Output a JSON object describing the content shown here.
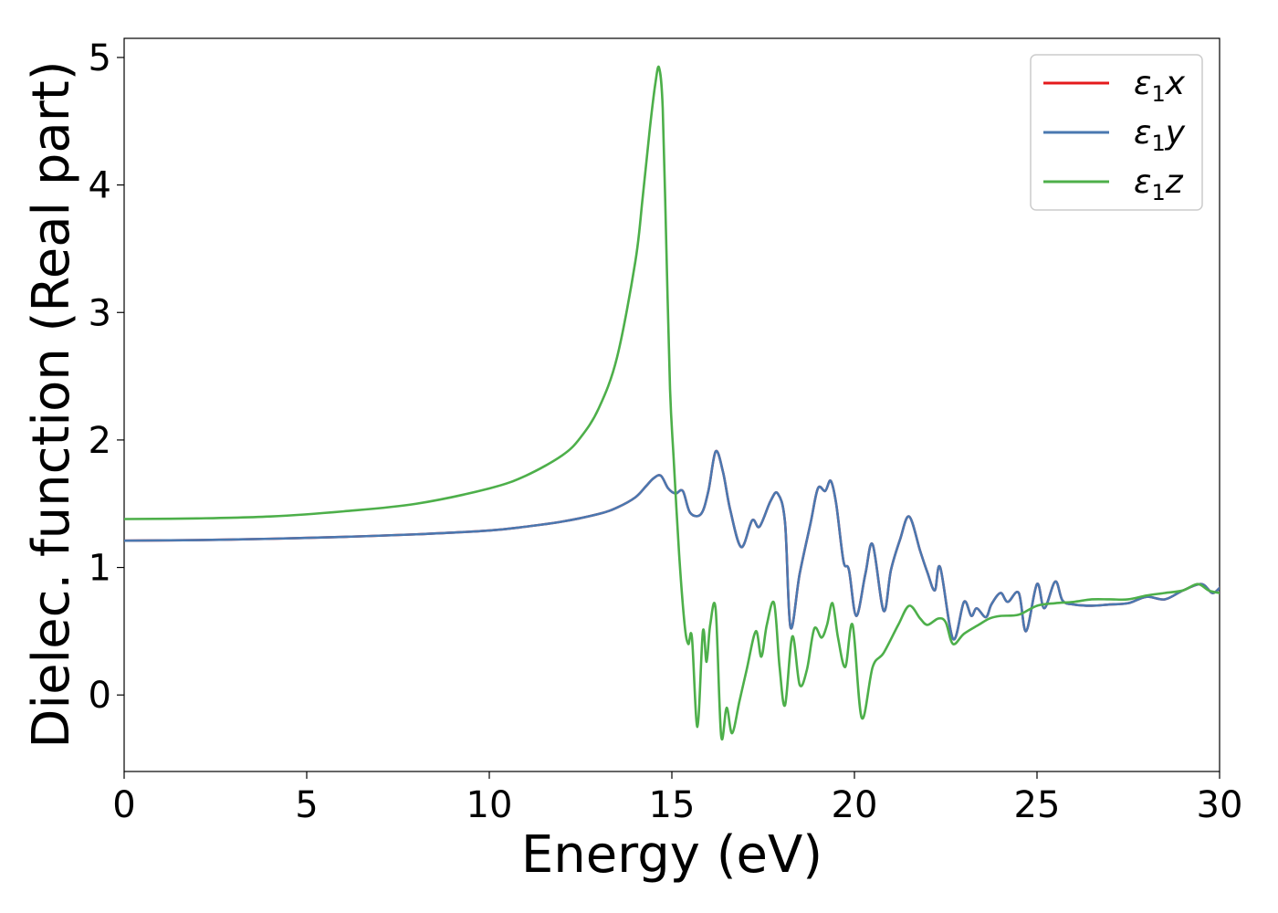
{
  "chart_data": {
    "type": "line",
    "title": "",
    "xlabel": "Energy (eV)",
    "ylabel": "Dielec. function (Real part)",
    "xlim": [
      0,
      30
    ],
    "ylim": [
      -0.6,
      5.15
    ],
    "xticks": [
      0,
      5,
      10,
      15,
      20,
      25,
      30
    ],
    "yticks": [
      0,
      1,
      2,
      3,
      4,
      5
    ],
    "grid": false,
    "legend_position": "top-right",
    "series": [
      {
        "name": "ε1x",
        "legend": {
          "symbol": "ε",
          "sub": "1",
          "var": "x"
        },
        "color": "#e41a1c",
        "x": [
          0,
          2,
          4,
          6,
          8,
          10,
          11,
          12,
          13,
          13.5,
          14,
          14.3,
          14.5,
          14.7,
          14.9,
          15.1,
          15.3,
          15.5,
          15.8,
          16.0,
          16.2,
          16.4,
          16.6,
          16.9,
          17.2,
          17.4,
          17.7,
          17.9,
          18.1,
          18.25,
          18.5,
          18.8,
          19.0,
          19.2,
          19.35,
          19.5,
          19.7,
          19.85,
          20.05,
          20.3,
          20.5,
          20.8,
          21.0,
          21.25,
          21.5,
          21.8,
          22.0,
          22.2,
          22.35,
          22.7,
          23.0,
          23.2,
          23.35,
          23.6,
          23.75,
          24.0,
          24.2,
          24.5,
          24.7,
          25.0,
          25.2,
          25.5,
          25.7,
          26.0,
          26.5,
          27.0,
          27.5,
          28.0,
          28.5,
          29.0,
          29.5,
          29.8,
          30.0
        ],
        "values": [
          1.21,
          1.215,
          1.225,
          1.24,
          1.26,
          1.29,
          1.32,
          1.36,
          1.42,
          1.47,
          1.55,
          1.64,
          1.7,
          1.72,
          1.62,
          1.58,
          1.6,
          1.43,
          1.42,
          1.6,
          1.91,
          1.75,
          1.45,
          1.16,
          1.37,
          1.32,
          1.52,
          1.58,
          1.35,
          0.53,
          0.95,
          1.35,
          1.62,
          1.6,
          1.68,
          1.5,
          1.05,
          0.98,
          0.62,
          0.95,
          1.18,
          0.66,
          0.98,
          1.22,
          1.4,
          1.13,
          0.96,
          0.82,
          1.0,
          0.44,
          0.73,
          0.62,
          0.68,
          0.61,
          0.71,
          0.8,
          0.73,
          0.8,
          0.5,
          0.87,
          0.68,
          0.89,
          0.74,
          0.71,
          0.7,
          0.71,
          0.72,
          0.77,
          0.75,
          0.82,
          0.87,
          0.8,
          0.84
        ]
      },
      {
        "name": "ε1y",
        "legend": {
          "symbol": "ε",
          "sub": "1",
          "var": "y"
        },
        "color": "#4a78b0",
        "x": [
          0,
          2,
          4,
          6,
          8,
          10,
          11,
          12,
          13,
          13.5,
          14,
          14.3,
          14.5,
          14.7,
          14.9,
          15.1,
          15.3,
          15.5,
          15.8,
          16.0,
          16.2,
          16.4,
          16.6,
          16.9,
          17.2,
          17.4,
          17.7,
          17.9,
          18.1,
          18.25,
          18.5,
          18.8,
          19.0,
          19.2,
          19.35,
          19.5,
          19.7,
          19.85,
          20.05,
          20.3,
          20.5,
          20.8,
          21.0,
          21.25,
          21.5,
          21.8,
          22.0,
          22.2,
          22.35,
          22.7,
          23.0,
          23.2,
          23.35,
          23.6,
          23.75,
          24.0,
          24.2,
          24.5,
          24.7,
          25.0,
          25.2,
          25.5,
          25.7,
          26.0,
          26.5,
          27.0,
          27.5,
          28.0,
          28.5,
          29.0,
          29.5,
          29.8,
          30.0
        ],
        "values": [
          1.21,
          1.215,
          1.225,
          1.24,
          1.26,
          1.29,
          1.32,
          1.36,
          1.42,
          1.47,
          1.55,
          1.64,
          1.7,
          1.72,
          1.62,
          1.58,
          1.6,
          1.43,
          1.42,
          1.6,
          1.91,
          1.75,
          1.45,
          1.16,
          1.37,
          1.32,
          1.52,
          1.58,
          1.35,
          0.53,
          0.95,
          1.35,
          1.62,
          1.6,
          1.68,
          1.5,
          1.05,
          0.98,
          0.62,
          0.95,
          1.18,
          0.66,
          0.98,
          1.22,
          1.4,
          1.13,
          0.96,
          0.82,
          1.0,
          0.44,
          0.73,
          0.62,
          0.68,
          0.61,
          0.71,
          0.8,
          0.73,
          0.8,
          0.5,
          0.87,
          0.68,
          0.89,
          0.74,
          0.71,
          0.7,
          0.71,
          0.72,
          0.77,
          0.75,
          0.82,
          0.87,
          0.8,
          0.84
        ]
      },
      {
        "name": "ε1z",
        "legend": {
          "symbol": "ε",
          "sub": "1",
          "var": "z"
        },
        "color": "#4daf4a",
        "x": [
          0,
          2,
          4,
          6,
          8,
          10,
          11,
          12,
          12.5,
          13,
          13.5,
          14,
          14.2,
          14.4,
          14.55,
          14.65,
          14.75,
          14.85,
          14.95,
          15.05,
          15.2,
          15.35,
          15.45,
          15.55,
          15.7,
          15.85,
          15.95,
          16.05,
          16.2,
          16.35,
          16.5,
          16.65,
          16.85,
          17.05,
          17.3,
          17.45,
          17.6,
          17.8,
          17.95,
          18.1,
          18.3,
          18.5,
          18.7,
          18.9,
          19.1,
          19.25,
          19.4,
          19.55,
          19.75,
          19.95,
          20.2,
          20.5,
          20.8,
          21.2,
          21.5,
          21.8,
          22.0,
          22.3,
          22.5,
          22.7,
          23.0,
          23.4,
          23.7,
          24.0,
          24.5,
          25.0,
          25.5,
          26.0,
          26.5,
          27.0,
          27.5,
          28.0,
          28.5,
          29.0,
          29.4,
          29.7,
          30.0
        ],
        "values": [
          1.38,
          1.385,
          1.4,
          1.44,
          1.5,
          1.62,
          1.72,
          1.88,
          2.02,
          2.25,
          2.65,
          3.4,
          3.9,
          4.45,
          4.8,
          4.92,
          4.6,
          3.5,
          2.4,
          1.85,
          1.1,
          0.55,
          0.4,
          0.45,
          -0.25,
          0.5,
          0.26,
          0.55,
          0.67,
          -0.32,
          -0.1,
          -0.3,
          -0.05,
          0.2,
          0.5,
          0.3,
          0.55,
          0.72,
          0.22,
          -0.08,
          0.46,
          0.08,
          0.2,
          0.52,
          0.45,
          0.55,
          0.72,
          0.45,
          0.22,
          0.55,
          -0.18,
          0.22,
          0.33,
          0.55,
          0.7,
          0.6,
          0.55,
          0.6,
          0.57,
          0.4,
          0.48,
          0.55,
          0.6,
          0.62,
          0.63,
          0.7,
          0.72,
          0.73,
          0.75,
          0.75,
          0.75,
          0.78,
          0.8,
          0.82,
          0.87,
          0.82,
          0.8
        ]
      }
    ]
  }
}
